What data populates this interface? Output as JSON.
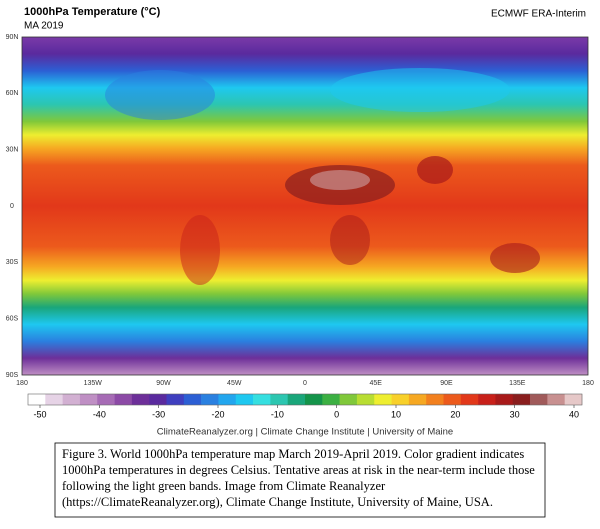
{
  "header": {
    "title": "1000hPa Temperature (°C)",
    "subtitle": "MA 2019",
    "source": "ECMWF ERA-Interim"
  },
  "map": {
    "lat_labels": [
      "90N",
      "60N",
      "30N",
      "0",
      "30S",
      "60S",
      "90S"
    ],
    "lon_labels": [
      "180",
      "135W",
      "90W",
      "45W",
      "0",
      "45E",
      "90E",
      "135E",
      "180"
    ]
  },
  "colorbar": {
    "ticks": [
      -50,
      -40,
      -30,
      -20,
      -10,
      0,
      10,
      20,
      30,
      40
    ],
    "colors": [
      "#ffffff",
      "#e6d3e6",
      "#d2b0d2",
      "#bf8fc4",
      "#a66bb5",
      "#8c4aa6",
      "#6d2f99",
      "#5a2a9e",
      "#3f3fbf",
      "#2c5fd4",
      "#2a80e0",
      "#22a6ee",
      "#1ec8f0",
      "#35dfe0",
      "#2cc6b0",
      "#1aa67a",
      "#14944a",
      "#3cb043",
      "#80c83a",
      "#b8dd32",
      "#eeee30",
      "#f8d02a",
      "#f6a822",
      "#f2801e",
      "#ec5a1c",
      "#e2381a",
      "#c8201a",
      "#a81a1a",
      "#8a1e1e",
      "#a05a5a",
      "#c89090",
      "#e6c8c8"
    ]
  },
  "footer": "ClimateReanalyzer.org | Climate Change Institute | University of Maine",
  "caption": {
    "lines": [
      "Figure 3. World 1000hPa temperature map March 2019-April 2019. Color gradient indicates",
      "1000hPa temperatures in degrees Celsius. Tentative areas at risk in the near-term include those",
      "following the light green bands. Image from Climate Reanalyzer",
      "(https://ClimateReanalyzer.org), Climate Change Institute, University of Maine, USA."
    ]
  }
}
